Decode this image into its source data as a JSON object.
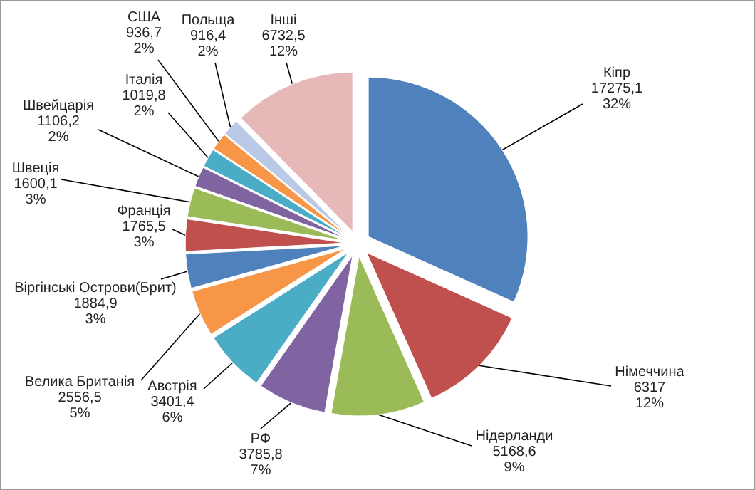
{
  "chart_data": {
    "type": "pie",
    "categories": [
      "Кіпр",
      "Німеччина",
      "Нідерланди",
      "РФ",
      "Австрія",
      "Велика Британія",
      "Віргінські Острови(Брит)",
      "Франція",
      "Швеція",
      "Швейцарія",
      "Італія",
      "США",
      "Польща",
      "Інші"
    ],
    "values": [
      17275.1,
      6317,
      5168.6,
      3785.8,
      3401.4,
      2556.5,
      1884.9,
      1765.5,
      1600.1,
      1106.2,
      1019.8,
      936.7,
      916.4,
      6732.5
    ],
    "value_labels": [
      "17275,1\n32%",
      "6317\n12%",
      "5168,6\n9%",
      "3785,8\n7%",
      "3401,4\n6%",
      "2556,5\n5%",
      "1884,9\n3%",
      "1765,5\n3%",
      "1600,1\n3%",
      "1106,2\n2%",
      "1019,8\n2%",
      "936,7\n2%",
      "916,4\n2%",
      "6732,5\n12%"
    ],
    "colors": [
      "#4f81bd",
      "#c0504d",
      "#9bbb59",
      "#8064a2",
      "#4bacc6",
      "#f79646",
      "#4f81bd",
      "#c0504d",
      "#9bbb59",
      "#8064a2",
      "#4bacc6",
      "#f79646",
      "#b9c9e6",
      "#e6b9b8"
    ],
    "legend": false
  }
}
